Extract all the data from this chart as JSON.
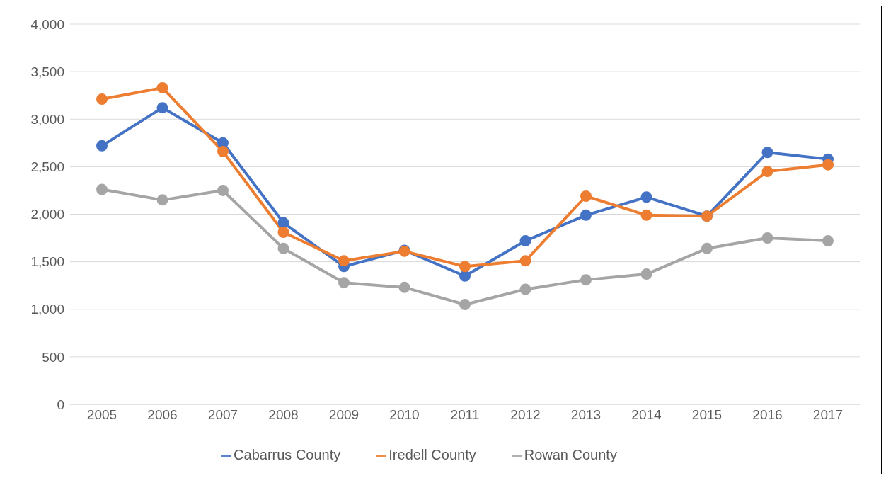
{
  "chart_data": {
    "type": "line",
    "categories": [
      "2005",
      "2006",
      "2007",
      "2008",
      "2009",
      "2010",
      "2011",
      "2012",
      "2013",
      "2014",
      "2015",
      "2016",
      "2017"
    ],
    "series": [
      {
        "name": "Cabarrus County",
        "color": "#4472c4",
        "values": [
          2720,
          3120,
          2750,
          1910,
          1450,
          1620,
          1350,
          1720,
          1990,
          2180,
          1980,
          2650,
          2580
        ]
      },
      {
        "name": "Iredell County",
        "color": "#ed7d31",
        "values": [
          3210,
          3330,
          2660,
          1810,
          1510,
          1610,
          1450,
          1510,
          2190,
          1990,
          1980,
          2450,
          2520
        ]
      },
      {
        "name": "Rowan County",
        "color": "#a5a5a5",
        "values": [
          2260,
          2150,
          2250,
          1640,
          1280,
          1230,
          1050,
          1210,
          1310,
          1370,
          1640,
          1750,
          1720
        ]
      }
    ],
    "ylim": [
      0,
      4000
    ],
    "yticks": [
      0,
      500,
      {
        "value": 1000,
        "label": "1,000"
      },
      {
        "value": 1500,
        "label": "1,500"
      },
      {
        "value": 2000,
        "label": "2,000"
      },
      {
        "value": 2500,
        "label": "2,500"
      },
      {
        "value": 3000,
        "label": "3,000"
      },
      {
        "value": 3500,
        "label": "3,500"
      },
      {
        "value": 4000,
        "label": "4,000"
      }
    ],
    "grid": "y",
    "legend": "bottom",
    "marker": "circle",
    "line_style": "solid"
  }
}
